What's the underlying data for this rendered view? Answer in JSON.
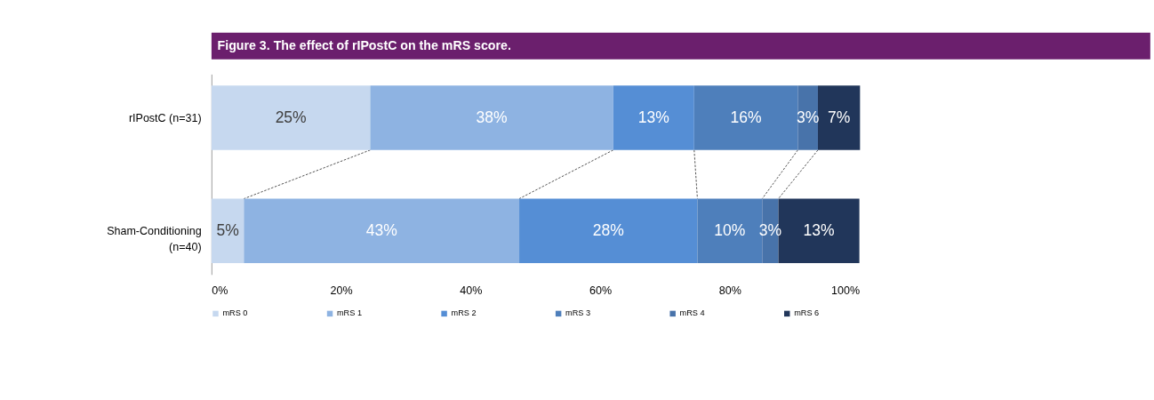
{
  "chart_data": {
    "type": "bar",
    "orientation": "horizontal",
    "stacked": true,
    "title": "Figure 3.  The effect of rIPostC on the mRS score.",
    "categories": [
      "rIPostC (n=31)",
      "Sham-Conditioning\n(n=40)"
    ],
    "series": [
      {
        "name": "mRS 0",
        "color": "#c6d8ef",
        "values": [
          24.5,
          5.0
        ],
        "value_labels": [
          "25%",
          "5%"
        ]
      },
      {
        "name": "mRS 1",
        "color": "#8eb3e2",
        "values": [
          37.5,
          42.5
        ],
        "value_labels": [
          "38%",
          "43%"
        ]
      },
      {
        "name": "mRS 2",
        "color": "#558ed5",
        "values": [
          12.5,
          27.5
        ],
        "value_labels": [
          "13%",
          "28%"
        ]
      },
      {
        "name": "mRS 3",
        "color": "#4e7fbb",
        "values": [
          16.0,
          10.0
        ],
        "value_labels": [
          "16%",
          "10%"
        ]
      },
      {
        "name": "mRS 4",
        "color": "#4873aa",
        "values": [
          3.1,
          2.5
        ],
        "value_labels": [
          "3%",
          "3%"
        ]
      },
      {
        "name": "mRS 6",
        "color": "#21365a",
        "values": [
          6.5,
          12.5
        ],
        "value_labels": [
          "7%",
          "13%"
        ]
      }
    ],
    "xlim": [
      0,
      100
    ],
    "xticks": [
      {
        "value": 0,
        "label": "0%"
      },
      {
        "value": 20,
        "label": "20%"
      },
      {
        "value": 40,
        "label": "40%"
      },
      {
        "value": 60,
        "label": "60%"
      },
      {
        "value": 80,
        "label": "80%"
      },
      {
        "value": 100,
        "label": "100%"
      }
    ],
    "grid": false,
    "legend": "bottom"
  }
}
